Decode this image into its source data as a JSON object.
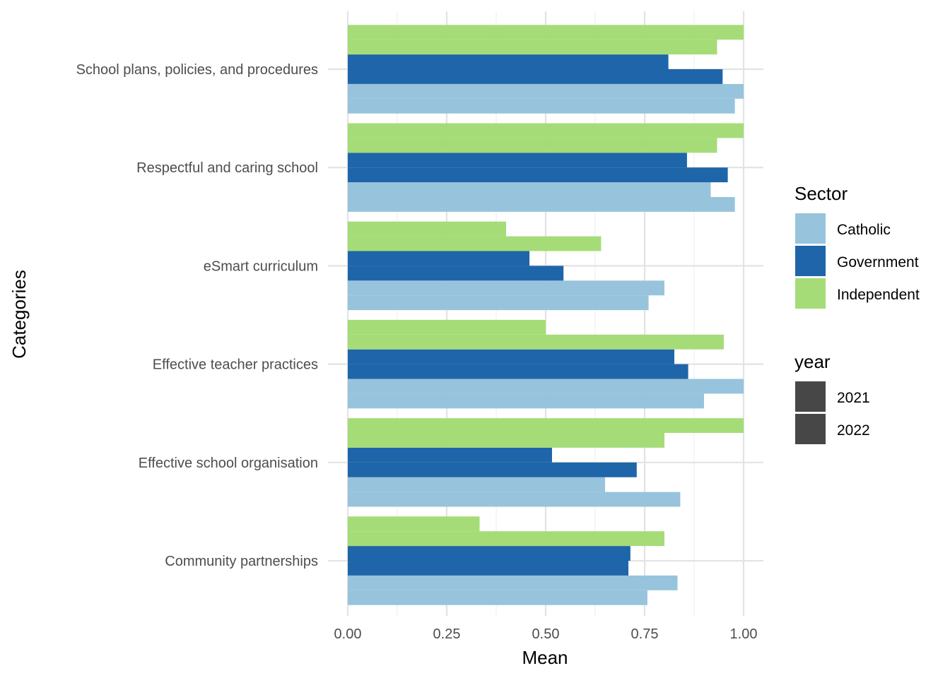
{
  "chart_data": {
    "type": "bar",
    "orientation": "horizontal",
    "xlabel": "Mean",
    "ylabel": "Categories",
    "xlim": [
      0,
      1
    ],
    "x_ticks": [
      "0.00",
      "0.25",
      "0.50",
      "0.75",
      "1.00"
    ],
    "categories": [
      "Community partnerships",
      "Effective school organisation",
      "Effective teacher practices",
      "eSmart curriculum",
      "Respectful and caring school",
      "School plans, policies, and procedures"
    ],
    "grid": true,
    "legend_position": "right",
    "legends": {
      "sector": {
        "title": "Sector",
        "items": [
          {
            "label": "Catholic",
            "color": "#97C4DC"
          },
          {
            "label": "Government",
            "color": "#1F65A9"
          },
          {
            "label": "Independent",
            "color": "#A5DC77"
          }
        ]
      },
      "year": {
        "title": "year",
        "items": [
          {
            "label": "2021",
            "color": "#474747"
          },
          {
            "label": "2022",
            "color": "#474747"
          }
        ]
      }
    },
    "series": [
      {
        "sector": "Catholic",
        "year": "2021",
        "values": [
          0.833,
          0.65,
          1.0,
          0.8,
          0.917,
          1.0
        ]
      },
      {
        "sector": "Catholic",
        "year": "2022",
        "values": [
          0.757,
          0.84,
          0.9,
          0.76,
          0.978,
          0.978
        ]
      },
      {
        "sector": "Government",
        "year": "2021",
        "values": [
          0.714,
          0.516,
          0.825,
          0.459,
          0.857,
          0.81
        ]
      },
      {
        "sector": "Government",
        "year": "2022",
        "values": [
          0.709,
          0.73,
          0.86,
          0.545,
          0.96,
          0.947
        ]
      },
      {
        "sector": "Independent",
        "year": "2021",
        "values": [
          0.333,
          1.0,
          0.5,
          0.4,
          1.0,
          1.0
        ]
      },
      {
        "sector": "Independent",
        "year": "2022",
        "values": [
          0.8,
          0.8,
          0.95,
          0.64,
          0.933,
          0.933
        ]
      }
    ]
  }
}
